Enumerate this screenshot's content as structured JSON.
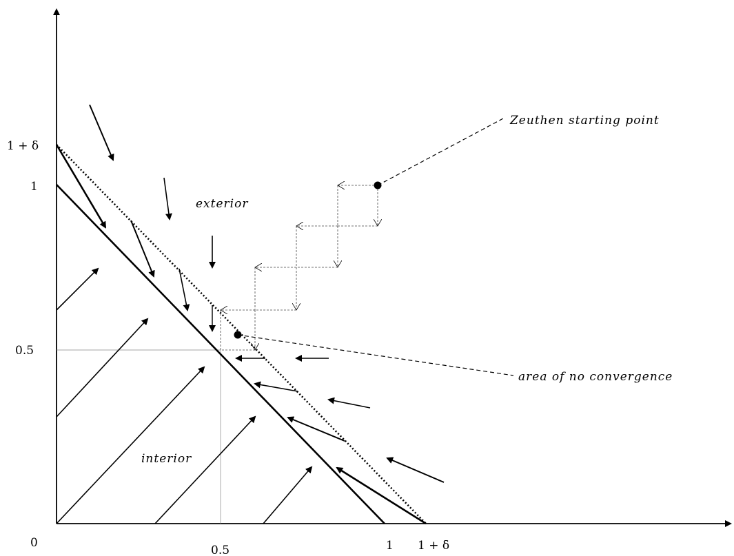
{
  "axes": {
    "origin_label": "0",
    "x_ticks": [
      "0.5",
      "1",
      "1 + δ"
    ],
    "y_ticks": [
      "0.5",
      "1",
      "1 + δ"
    ]
  },
  "regions": {
    "exterior_label": "exterior",
    "interior_label": "interior"
  },
  "annotations": {
    "zeuthen": "Zeuthen starting point",
    "no_convergence": "area of no convergence"
  }
}
